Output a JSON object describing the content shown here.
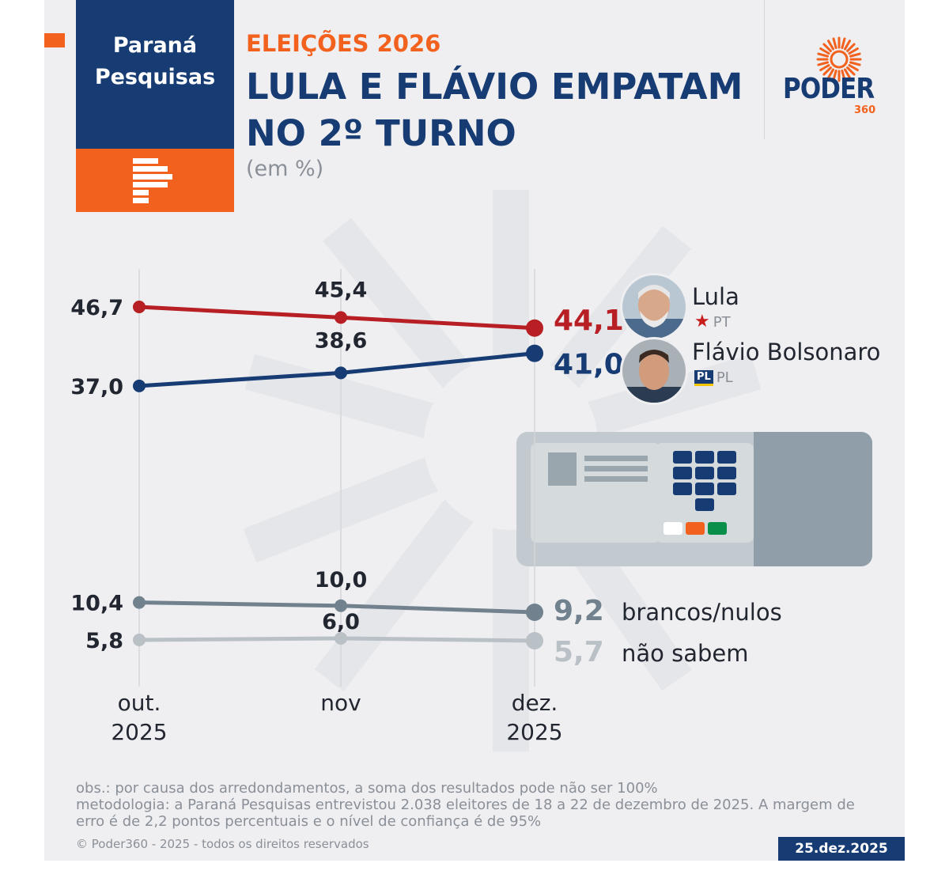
{
  "brand": {
    "line1": "Paraná",
    "line2": "Pesquisas"
  },
  "header": {
    "kicker": "ELEIÇÕES 2026",
    "headline_line1": "LULA E FLÁVIO EMPATAM",
    "headline_line2": "NO 2º TURNO",
    "unit": "(em %)"
  },
  "publisher": {
    "name": "PODER",
    "number": "360"
  },
  "candidates": [
    {
      "name": "Lula",
      "party": "PT"
    },
    {
      "name": "Flávio Bolsonaro",
      "party": "PL"
    }
  ],
  "chart_data": {
    "type": "line",
    "categories": [
      "out. 2025",
      "nov",
      "dez. 2025"
    ],
    "category_lines": [
      [
        "out.",
        "2025"
      ],
      [
        "nov"
      ],
      [
        "dez.",
        "2025"
      ]
    ],
    "ylim": [
      0,
      50
    ],
    "series": [
      {
        "name": "Lula",
        "color": "#b71f24",
        "values": [
          46.7,
          45.4,
          44.1
        ],
        "labels": [
          "46,7",
          "45,4",
          "44,1"
        ]
      },
      {
        "name": "Flávio Bolsonaro",
        "color": "#173c73",
        "values": [
          37.0,
          38.6,
          41.0
        ],
        "labels": [
          "37,0",
          "38,6",
          "41,0"
        ]
      },
      {
        "name": "brancos/nulos",
        "color": "#72818e",
        "values": [
          10.4,
          10.0,
          9.2
        ],
        "labels": [
          "10,4",
          "10,0",
          "9,2"
        ]
      },
      {
        "name": "não sabem",
        "color": "#b9c0c6",
        "values": [
          5.8,
          6.0,
          5.7
        ],
        "labels": [
          "5,8",
          "6,0",
          "5,7"
        ]
      }
    ]
  },
  "notes": {
    "obs": "obs.: por causa dos arredondamentos, a soma dos resultados pode não ser 100%",
    "method": "metodologia: a Paraná Pesquisas entrevistou 2.038 eleitores de 18 a 22 de dezembro de 2025. A margem de erro é de 2,2 pontos percentuais e o nível de confiança é de 95%"
  },
  "footer": {
    "copyright": "© Poder360 - 2025 - todos os direitos reservados",
    "date": "25.dez.2025"
  }
}
